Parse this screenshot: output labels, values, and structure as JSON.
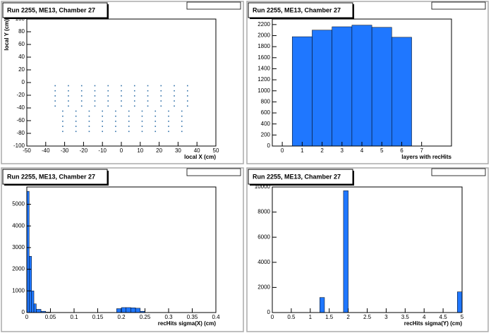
{
  "chart_data": [
    {
      "type": "scatter",
      "title": "Run 2255, ME13, Chamber 27",
      "x_label": "local X (cm)",
      "y_label": "local Y (cm)",
      "color": "#2f6fa8",
      "xlim": [
        -50,
        50
      ],
      "xticks": [
        -50,
        -40,
        -30,
        -20,
        -10,
        0,
        10,
        20,
        30,
        40,
        50
      ],
      "ylim": [
        -100,
        100
      ],
      "yticks": [
        -100,
        -80,
        -60,
        -40,
        -20,
        0,
        20,
        40,
        60,
        80,
        100
      ],
      "x": [
        -35,
        -28,
        -21,
        -14,
        -7,
        0,
        7,
        14,
        21,
        28,
        35,
        -35,
        -28,
        -21,
        -14,
        -7,
        0,
        7,
        14,
        21,
        28,
        35,
        -35,
        -28,
        -21,
        -14,
        -7,
        0,
        7,
        14,
        21,
        28,
        35,
        -35,
        -28,
        -21,
        -14,
        -7,
        0,
        7,
        14,
        21,
        28,
        35,
        -35,
        -28,
        -21,
        -14,
        -7,
        0,
        7,
        14,
        21,
        28,
        35,
        -31,
        -24,
        -17,
        -10,
        -3,
        4,
        11,
        18,
        25,
        32,
        -31,
        -24,
        -17,
        -10,
        -3,
        4,
        11,
        18,
        25,
        32,
        -31,
        -24,
        -17,
        -10,
        -3,
        4,
        11,
        18,
        25,
        32,
        -31,
        -24,
        -17,
        -10,
        -3,
        4,
        11,
        18,
        25,
        32,
        -31,
        -24,
        -17,
        -10,
        -3,
        4,
        11,
        18,
        25,
        32
      ],
      "values": [
        -5,
        -5,
        -5,
        -5,
        -5,
        -5,
        -5,
        -5,
        -5,
        -5,
        -5,
        -13,
        -13,
        -13,
        -13,
        -13,
        -13,
        -13,
        -13,
        -13,
        -13,
        -13,
        -21,
        -21,
        -21,
        -21,
        -21,
        -21,
        -21,
        -21,
        -21,
        -21,
        -21,
        -29,
        -29,
        -29,
        -29,
        -29,
        -29,
        -29,
        -29,
        -29,
        -29,
        -29,
        -37,
        -37,
        -37,
        -37,
        -37,
        -37,
        -37,
        -37,
        -37,
        -37,
        -37,
        -45,
        -45,
        -45,
        -45,
        -45,
        -45,
        -45,
        -45,
        -45,
        -45,
        -53,
        -53,
        -53,
        -53,
        -53,
        -53,
        -53,
        -53,
        -53,
        -53,
        -61,
        -61,
        -61,
        -61,
        -61,
        -61,
        -61,
        -61,
        -61,
        -61,
        -69,
        -69,
        -69,
        -69,
        -69,
        -69,
        -69,
        -69,
        -69,
        -69,
        -77,
        -77,
        -77,
        -77,
        -77,
        -77,
        -77,
        -77,
        -77,
        -77
      ]
    },
    {
      "type": "histogram",
      "title": "Run 2255, ME13, Chamber 27",
      "x_label": "layers with recHits",
      "color": "#1f77ff",
      "xlim": [
        -0.5,
        8.5
      ],
      "xticks": [
        0,
        1,
        2,
        3,
        4,
        5,
        6,
        7
      ],
      "ylim": [
        0,
        2300
      ],
      "yticks": [
        0,
        200,
        400,
        600,
        800,
        1000,
        1200,
        1400,
        1600,
        1800,
        2000,
        2200
      ],
      "bins": [
        0.5,
        1.5,
        2.5,
        3.5,
        4.5,
        5.5,
        6.5
      ],
      "values": [
        1980,
        2100,
        2160,
        2190,
        2150,
        1970
      ]
    },
    {
      "type": "histogram",
      "title": "Run 2255, ME13, Chamber 27",
      "x_label": "recHits sigma(X) (cm)",
      "color": "#1f77ff",
      "xlim": [
        0,
        0.4
      ],
      "xticks": [
        0,
        0.05,
        0.1,
        0.15,
        0.2,
        0.25,
        0.3,
        0.35,
        0.4
      ],
      "ylim": [
        0,
        5800
      ],
      "yticks": [
        0,
        1000,
        2000,
        3000,
        4000,
        5000
      ],
      "bins": [
        0,
        0.005,
        0.01,
        0.015,
        0.02,
        0.03,
        0.04,
        0.05,
        0.19,
        0.2,
        0.21,
        0.22,
        0.23,
        0.24,
        0.25
      ],
      "values": [
        5600,
        2600,
        1000,
        400,
        150,
        60,
        20,
        0,
        180,
        230,
        230,
        220,
        200,
        60
      ]
    },
    {
      "type": "histogram",
      "title": "Run 2255, ME13, Chamber 27",
      "x_label": "recHits sigma(Y) (cm)",
      "color": "#1f77ff",
      "xlim": [
        0,
        5
      ],
      "xticks": [
        0,
        0.5,
        1,
        1.5,
        2,
        2.5,
        3,
        3.5,
        4,
        4.5,
        5
      ],
      "ylim": [
        0,
        10000
      ],
      "yticks": [
        0,
        2000,
        4000,
        6000,
        8000,
        10000
      ],
      "bins": [
        1.25,
        1.375,
        1.875,
        2,
        4.875,
        5
      ],
      "values": [
        1200,
        0,
        9700,
        0,
        1650
      ]
    }
  ]
}
